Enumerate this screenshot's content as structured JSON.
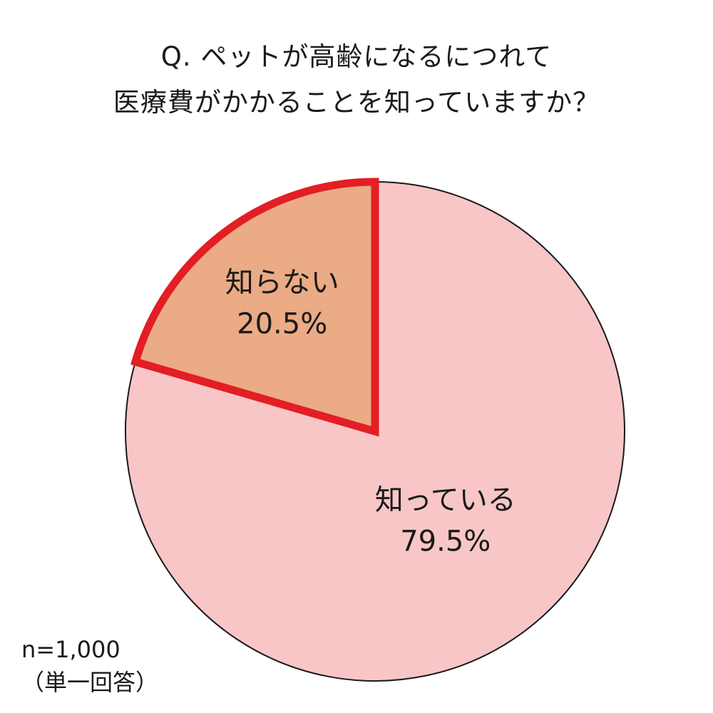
{
  "title_lines": [
    "Q. ペットが高齢になるにつれて",
    "医療費がかかることを知っていますか？"
  ],
  "note_lines": [
    "n=1,000",
    "（単一回答）"
  ],
  "chart_data": {
    "type": "pie",
    "title": "Q. ペットが高齢になるにつれて 医療費がかかることを知っていますか？",
    "slices": [
      {
        "label": "知っている",
        "value": 79.5,
        "value_label": "79.5%",
        "color": "#f8c6c6"
      },
      {
        "label": "知らない",
        "value": 20.5,
        "value_label": "20.5%",
        "color": "#eaab85",
        "highlight_stroke": "#e31e24"
      }
    ],
    "start": "12 o'clock",
    "direction": "clockwise",
    "legend": "none"
  }
}
